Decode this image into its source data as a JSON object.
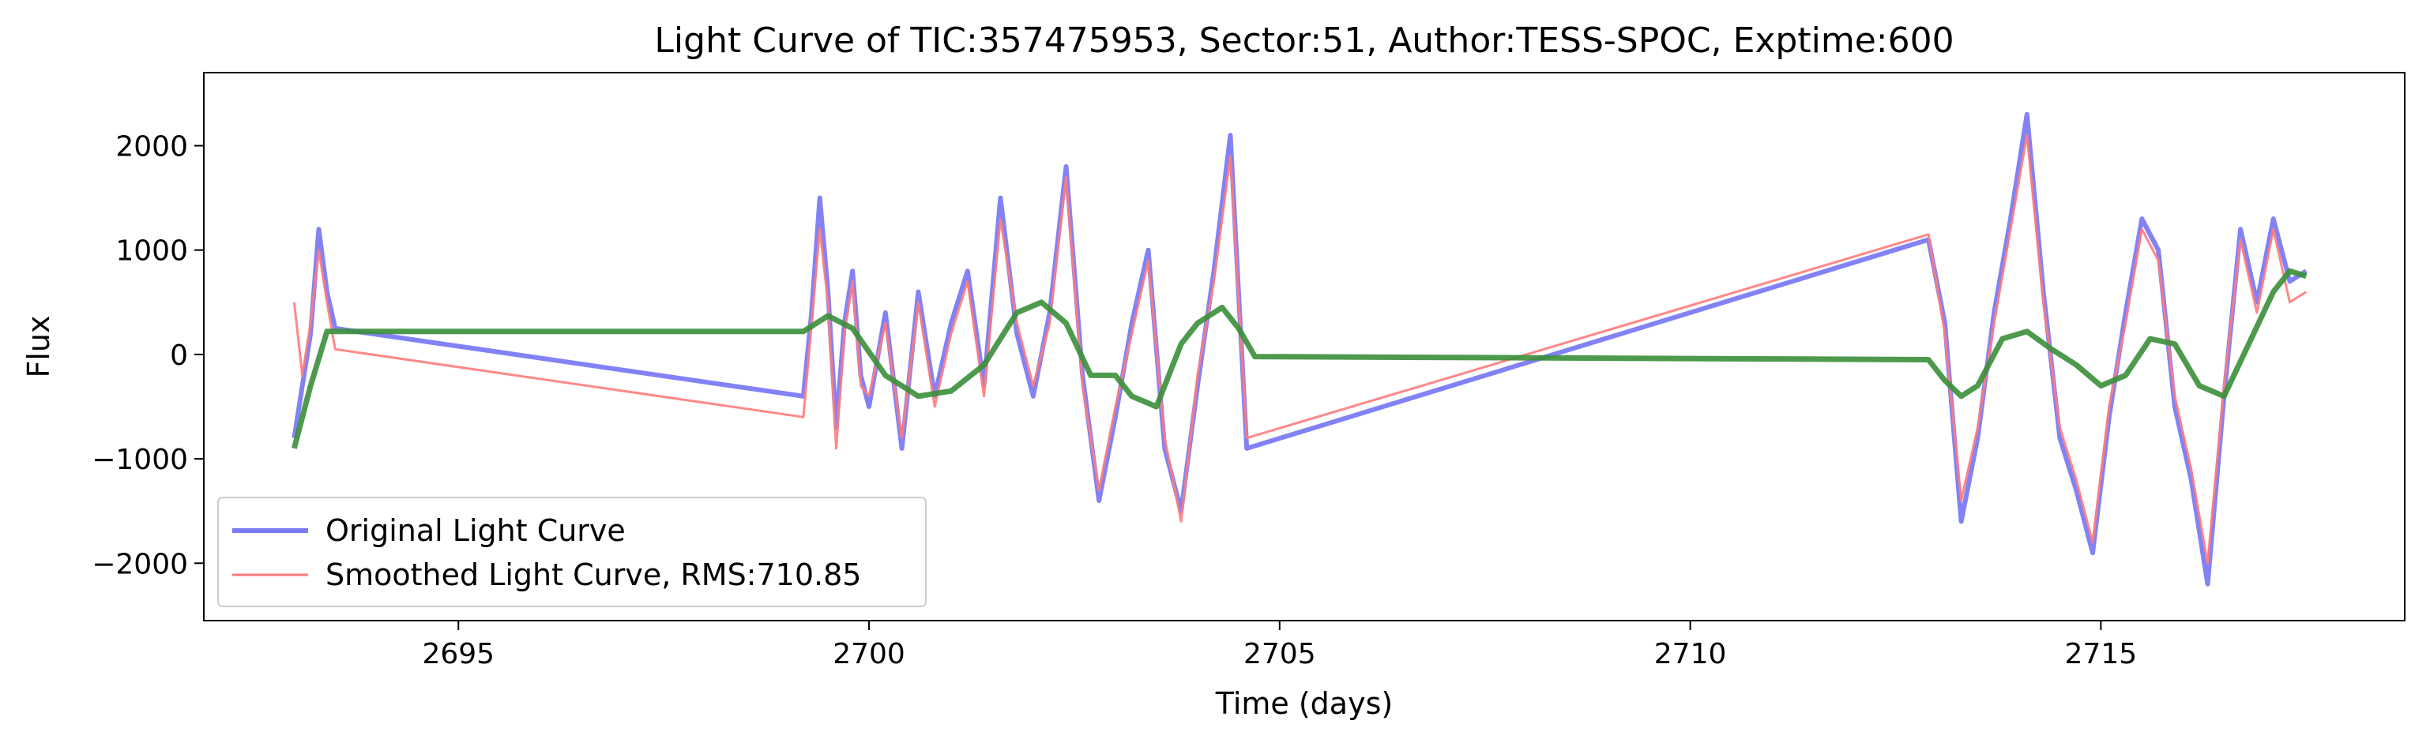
{
  "chart_data": {
    "type": "line",
    "title": "Light Curve of TIC:357475953, Sector:51, Author:TESS-SPOC, Exptime:600",
    "xlabel": "Time (days)",
    "ylabel": "Flux",
    "xlim": [
      2691.9,
      2718.7
    ],
    "ylim": [
      -2550,
      2700
    ],
    "xticks": [
      2695,
      2700,
      2705,
      2710,
      2715
    ],
    "yticks": [
      -2000,
      -1000,
      0,
      1000,
      2000
    ],
    "xtick_labels": [
      "2695",
      "2700",
      "2705",
      "2710",
      "2715"
    ],
    "ytick_labels": [
      "−2000",
      "−1000",
      "0",
      "1000",
      "2000"
    ],
    "grid": false,
    "legend": {
      "location": "lower-left",
      "entries": [
        "Original Light Curve",
        "Smoothed Light Curve, RMS:710.85"
      ]
    },
    "series": [
      {
        "name": "Original Light Curve",
        "color": "#7b7bf5",
        "x": [
          2693.0,
          2693.1,
          2693.2,
          2693.3,
          2693.4,
          2693.5,
          2699.2,
          2699.3,
          2699.4,
          2699.5,
          2699.6,
          2699.7,
          2699.8,
          2699.9,
          2700.0,
          2700.2,
          2700.4,
          2700.6,
          2700.8,
          2701.0,
          2701.2,
          2701.4,
          2701.6,
          2701.8,
          2702.0,
          2702.2,
          2702.4,
          2702.6,
          2702.8,
          2703.0,
          2703.2,
          2703.4,
          2703.6,
          2703.8,
          2704.0,
          2704.2,
          2704.4,
          2704.6,
          2712.9,
          2713.1,
          2713.3,
          2713.5,
          2713.7,
          2713.9,
          2714.1,
          2714.3,
          2714.5,
          2714.7,
          2714.9,
          2715.1,
          2715.3,
          2715.5,
          2715.7,
          2715.9,
          2716.1,
          2716.3,
          2716.5,
          2716.7,
          2716.9,
          2717.1,
          2717.3,
          2717.5
        ],
        "y": [
          -800,
          -300,
          200,
          1200,
          600,
          250,
          -400,
          400,
          1500,
          600,
          -700,
          300,
          800,
          -200,
          -500,
          400,
          -900,
          600,
          -400,
          300,
          800,
          -300,
          1500,
          200,
          -400,
          400,
          1800,
          -200,
          -1400,
          -600,
          300,
          1000,
          -900,
          -1500,
          -300,
          800,
          2100,
          -900,
          1100,
          300,
          -1600,
          -800,
          400,
          1300,
          2300,
          600,
          -800,
          -1300,
          -1900,
          -600,
          400,
          1300,
          1000,
          -500,
          -1200,
          -2200,
          -400,
          1200,
          500,
          1300,
          700,
          800
        ]
      },
      {
        "name": "Smoothed Light Curve, RMS:710.85",
        "color": "#ff7b7b",
        "x": [
          2693.0,
          2693.1,
          2693.2,
          2693.3,
          2693.4,
          2693.5,
          2699.2,
          2699.3,
          2699.4,
          2699.5,
          2699.6,
          2699.7,
          2699.8,
          2699.9,
          2700.0,
          2700.2,
          2700.4,
          2700.6,
          2700.8,
          2701.0,
          2701.2,
          2701.4,
          2701.6,
          2701.8,
          2702.0,
          2702.2,
          2702.4,
          2702.6,
          2702.8,
          2703.0,
          2703.2,
          2703.4,
          2703.6,
          2703.8,
          2704.0,
          2704.2,
          2704.4,
          2704.6,
          2712.9,
          2713.1,
          2713.3,
          2713.5,
          2713.7,
          2713.9,
          2714.1,
          2714.3,
          2714.5,
          2714.7,
          2714.9,
          2715.1,
          2715.3,
          2715.5,
          2715.7,
          2715.9,
          2716.1,
          2716.3,
          2716.5,
          2716.7,
          2716.9,
          2717.1,
          2717.3,
          2717.5
        ],
        "y": [
          500,
          -200,
          300,
          1000,
          500,
          50,
          -600,
          300,
          1200,
          500,
          -900,
          200,
          700,
          -300,
          -400,
          300,
          -800,
          500,
          -500,
          200,
          700,
          -400,
          1300,
          300,
          -300,
          300,
          1700,
          -300,
          -1300,
          -500,
          200,
          900,
          -800,
          -1600,
          -200,
          700,
          1900,
          -800,
          1150,
          200,
          -1400,
          -700,
          300,
          1200,
          2100,
          500,
          -700,
          -1200,
          -1800,
          -500,
          300,
          1200,
          900,
          -400,
          -1100,
          -2000,
          -300,
          1100,
          400,
          1200,
          500,
          600
        ]
      },
      {
        "name": "",
        "color": "#3a8f3a",
        "x": [
          2693.0,
          2693.2,
          2693.4,
          2699.2,
          2699.5,
          2699.8,
          2700.2,
          2700.6,
          2701.0,
          2701.4,
          2701.8,
          2702.1,
          2702.4,
          2702.7,
          2703.0,
          2703.2,
          2703.5,
          2703.8,
          2704.0,
          2704.3,
          2704.5,
          2704.7,
          2712.9,
          2713.1,
          2713.3,
          2713.5,
          2713.8,
          2714.1,
          2714.4,
          2714.7,
          2715.0,
          2715.3,
          2715.6,
          2715.9,
          2716.2,
          2716.5,
          2716.8,
          2717.1,
          2717.3,
          2717.5
        ],
        "y": [
          -900,
          -300,
          220,
          220,
          370,
          250,
          -200,
          -400,
          -350,
          -100,
          400,
          500,
          300,
          -200,
          -200,
          -400,
          -500,
          100,
          300,
          450,
          250,
          -20,
          -50,
          -250,
          -400,
          -300,
          150,
          220,
          50,
          -100,
          -300,
          -200,
          150,
          100,
          -300,
          -400,
          100,
          600,
          800,
          750
        ]
      }
    ]
  }
}
